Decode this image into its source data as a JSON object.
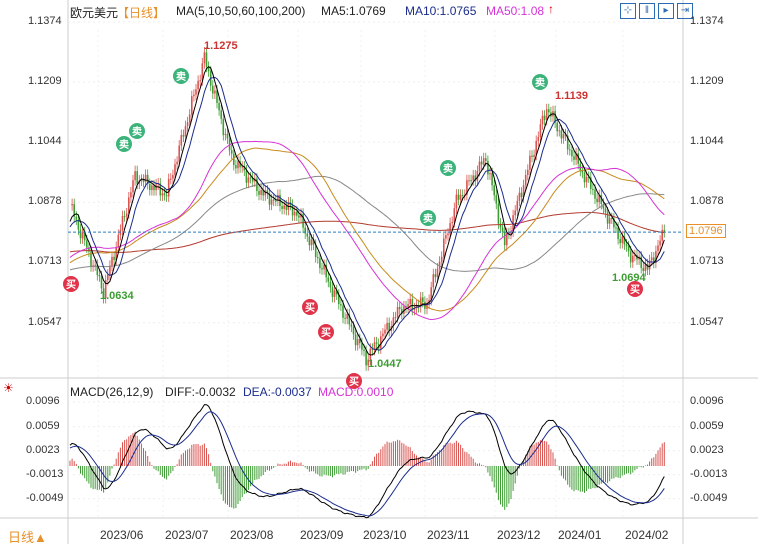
{
  "header": {
    "symbol": "欧元美元",
    "period": "【日线】",
    "ma_label": "MA(5,10,50,60,100,200)",
    "ma5": "MA5:1.0769",
    "ma10": "MA10:1.0765",
    "ma50": "MA50:1.08"
  },
  "macd_header": {
    "label": "MACD(26,12,9)",
    "diff": "DIFF:-0.0032",
    "dea": "DEA:-0.0037",
    "macd": "MACD:0.0010"
  },
  "footer": {
    "period": "日线▲"
  },
  "colors": {
    "up": "#d9534f",
    "down": "#3f9c35",
    "ma5": "#000000",
    "ma10": "#1a2c8c",
    "ma50": "#d633d6",
    "ma60": "#c88a1c",
    "ma100": "#888888",
    "ma200": "#b33a2e"
  },
  "chart_data": {
    "type": "candlestick",
    "price_ticks": [
      "1.1374",
      "1.1209",
      "1.1044",
      "1.0878",
      "1.0713",
      "1.0547"
    ],
    "macd_ticks": [
      "0.0096",
      "0.0059",
      "0.0023",
      "-0.0013",
      "-0.0049"
    ],
    "x_ticks": [
      "2023/06",
      "2023/07",
      "2023/08",
      "2023/09",
      "2023/10",
      "2023/11",
      "2023/12",
      "2024/01",
      "2024/02"
    ],
    "last_price": "1.0796",
    "annotations": [
      "1.1275",
      "1.1139",
      "1.0634",
      "1.0447",
      "1.0694"
    ],
    "key_closes": [
      [
        "2023-05-15",
        1.087
      ],
      [
        "2023-05-31",
        1.0634
      ],
      [
        "2023-06-15",
        1.095
      ],
      [
        "2023-06-30",
        1.09
      ],
      [
        "2023-07-18",
        1.1275
      ],
      [
        "2023-07-31",
        1.1
      ],
      [
        "2023-08-15",
        1.09
      ],
      [
        "2023-08-31",
        1.085
      ],
      [
        "2023-09-15",
        1.066
      ],
      [
        "2023-10-03",
        1.0447
      ],
      [
        "2023-10-20",
        1.059
      ],
      [
        "2023-11-01",
        1.06
      ],
      [
        "2023-11-15",
        1.088
      ],
      [
        "2023-11-29",
        1.1
      ],
      [
        "2023-12-08",
        1.076
      ],
      [
        "2023-12-28",
        1.1139
      ],
      [
        "2024-01-15",
        1.095
      ],
      [
        "2024-02-05",
        1.074
      ],
      [
        "2024-02-14",
        1.0694
      ],
      [
        "2024-02-22",
        1.0796
      ]
    ],
    "signals": [
      {
        "type": "sell",
        "label": "卖",
        "date": "2023-06-08"
      },
      {
        "type": "sell",
        "label": "卖",
        "date": "2023-06-12"
      },
      {
        "type": "sell",
        "label": "卖",
        "date": "2023-07-14"
      },
      {
        "type": "sell",
        "label": "卖",
        "date": "2023-11-14"
      },
      {
        "type": "sell",
        "label": "卖",
        "date": "2023-11-02"
      },
      {
        "type": "sell",
        "label": "卖",
        "date": "2023-12-22"
      },
      {
        "type": "buy",
        "label": "买",
        "date": "2023-05-15"
      },
      {
        "type": "buy",
        "label": "买",
        "date": "2023-09-14"
      },
      {
        "type": "buy",
        "label": "买",
        "date": "2023-09-20"
      },
      {
        "type": "buy",
        "label": "买",
        "date": "2023-10-02"
      },
      {
        "type": "buy",
        "label": "买",
        "date": "2024-02-07"
      }
    ]
  }
}
